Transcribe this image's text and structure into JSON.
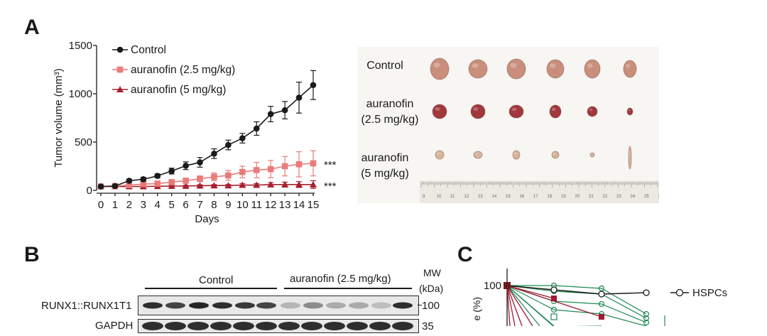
{
  "panels": {
    "a": "A",
    "b": "B",
    "c": "C"
  },
  "chart_data": [
    {
      "type": "line",
      "panel": "A",
      "xlabel": "Days",
      "ylabel": "Tumor volume (mm³)",
      "xlim": [
        0,
        15
      ],
      "ylim": [
        0,
        1500
      ],
      "xticks": [
        0,
        1,
        2,
        3,
        4,
        5,
        6,
        7,
        8,
        9,
        10,
        11,
        12,
        13,
        14,
        15
      ],
      "yticks": [
        0,
        500,
        1000,
        1500
      ],
      "legend": {
        "position": "top-left"
      },
      "series": [
        {
          "name": "Control",
          "color": "#1a1a1a",
          "marker": "circle",
          "x": [
            0,
            1,
            2,
            3,
            4,
            5,
            6,
            7,
            8,
            9,
            10,
            11,
            12,
            13,
            14,
            15
          ],
          "values": [
            40,
            45,
            100,
            115,
            150,
            200,
            255,
            290,
            380,
            470,
            540,
            640,
            790,
            830,
            960,
            1090
          ],
          "errors": [
            10,
            10,
            15,
            20,
            20,
            30,
            40,
            50,
            50,
            50,
            50,
            70,
            80,
            90,
            160,
            150
          ]
        },
        {
          "name": "auranofin (2.5 mg/kg)",
          "color": "#e97b7b",
          "marker": "square",
          "x": [
            0,
            1,
            2,
            3,
            4,
            5,
            6,
            7,
            8,
            9,
            10,
            11,
            12,
            13,
            14,
            15
          ],
          "values": [
            40,
            45,
            55,
            65,
            70,
            85,
            100,
            120,
            140,
            155,
            190,
            210,
            220,
            250,
            270,
            280
          ],
          "errors": [
            8,
            8,
            10,
            12,
            15,
            20,
            25,
            30,
            40,
            50,
            60,
            80,
            90,
            100,
            130,
            130
          ]
        },
        {
          "name": "auranofin (5 mg/kg)",
          "color": "#a8202f",
          "marker": "triangle",
          "x": [
            0,
            1,
            2,
            3,
            4,
            5,
            6,
            7,
            8,
            9,
            10,
            11,
            12,
            13,
            14,
            15
          ],
          "values": [
            40,
            40,
            40,
            40,
            42,
            45,
            45,
            48,
            50,
            50,
            55,
            55,
            60,
            60,
            60,
            60
          ],
          "errors": [
            5,
            5,
            5,
            6,
            6,
            8,
            8,
            10,
            10,
            12,
            15,
            15,
            20,
            25,
            30,
            40
          ]
        }
      ],
      "annotations": [
        {
          "text": "***",
          "series": "auranofin (2.5 mg/kg)"
        },
        {
          "text": "***",
          "series": "auranofin (5 mg/kg)"
        }
      ]
    },
    {
      "type": "line",
      "panel": "C",
      "ylabel": "e (%)",
      "yticks": [
        100
      ],
      "legend": {
        "position": "right",
        "entries": [
          "HSPCs"
        ]
      }
    }
  ],
  "tumor_photo": {
    "rows": [
      {
        "label_line1": "Control",
        "label_line2": "",
        "color": "#c98f7c",
        "count": 6
      },
      {
        "label_line1": "auranofin",
        "label_line2": "(2.5 mg/kg)",
        "color": "#a1383e",
        "count": 6
      },
      {
        "label_line1": "auranofin",
        "label_line2": "(5 mg/kg)",
        "color": "#d7b49a",
        "count": 6
      }
    ],
    "ruler_numbers": [
      "9",
      "10",
      "11",
      "12",
      "13",
      "14",
      "15",
      "16",
      "17",
      "18",
      "19",
      "20",
      "21",
      "22",
      "23",
      "24",
      "25",
      "26"
    ]
  },
  "western_blot": {
    "group_control": "Control",
    "group_treated": "auranofin (2.5 mg/kg)",
    "mw_header_line1": "MW",
    "mw_header_line2": "(kDa)",
    "rows": [
      {
        "label": "RUNX1::RUNX1T1",
        "mw": "100"
      },
      {
        "label": "GAPDH",
        "mw": "35"
      }
    ]
  }
}
